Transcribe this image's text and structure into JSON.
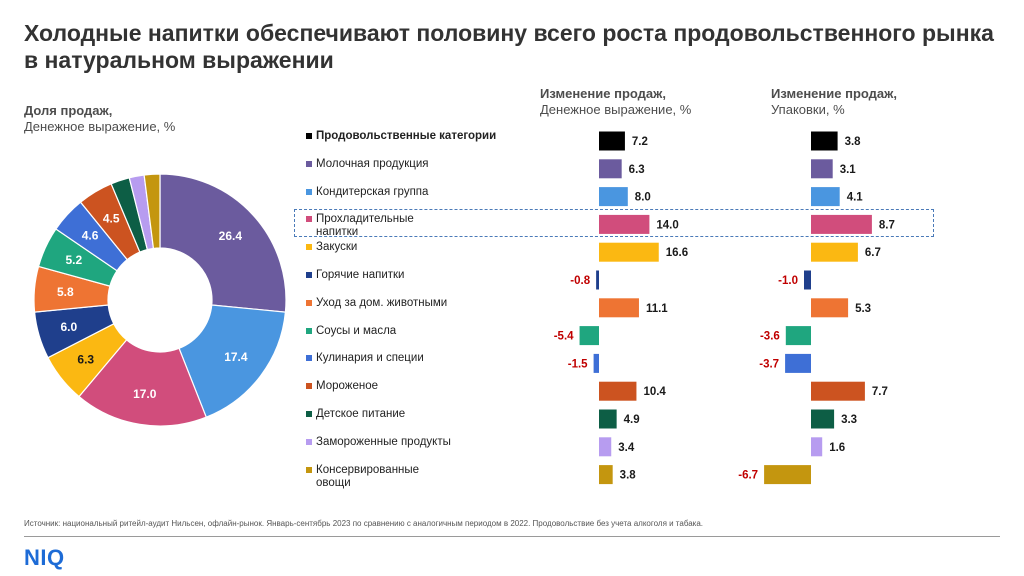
{
  "title": "Холодные напитки обеспечивают половину всего роста продовольственного рынка в натуральном выражении",
  "pie_heading": {
    "line1": "Доля продаж,",
    "line2": "Денежное выражение, %"
  },
  "mid_heading": {
    "line1": "Изменение продаж,",
    "line2": "Денежное выражение, %"
  },
  "right_heading": {
    "line1": "Изменение продаж,",
    "line2": "Упаковки, %"
  },
  "colors": {
    "negative_label": "#c00000",
    "positive_label": "#1a1a1a",
    "highlight_border": "#4a7ab8",
    "logo": "#1d6bd6"
  },
  "chart_data": [
    {
      "type": "pie",
      "variant": "donut",
      "title": "Доля продаж, Денежное выражение, %",
      "categories": [
        "Молочная продукция",
        "Кондитерская группа",
        "Прохладительные напитки",
        "Закуски",
        "Горячие напитки",
        "Уход за дом. животными",
        "Соусы и масла",
        "Кулинария и специи",
        "Мороженое",
        "Детское питание",
        "Замороженные продукты",
        "Консервированные овощи"
      ],
      "values": [
        26.4,
        17.4,
        17.0,
        6.3,
        6.0,
        5.8,
        5.2,
        4.6,
        4.5,
        2.4,
        1.9,
        2.0
      ],
      "labels": [
        "26.4",
        "17.4",
        "17.0",
        "6.3",
        "6.0",
        "5.8",
        "5.2",
        "4.6",
        "4.5",
        "",
        "",
        ""
      ],
      "colors": [
        "#6b5b9e",
        "#4a96e0",
        "#d14d7c",
        "#fbb812",
        "#1f3f8c",
        "#ee7433",
        "#1fa67f",
        "#3e6fd6",
        "#cc5320",
        "#0d5e45",
        "#b79cf0",
        "#c4960f"
      ]
    },
    {
      "type": "bar",
      "orientation": "horizontal",
      "title": "Изменение продаж, Денежное выражение, %",
      "categories": [
        "Продовольственные категории",
        "Молочная продукция",
        "Кондитерская группа",
        "Прохладительные напитки",
        "Закуски",
        "Горячие напитки",
        "Уход за дом. животными",
        "Соусы и масла",
        "Кулинария и специи",
        "Мороженое",
        "Детское питание",
        "Замороженные продукты",
        "Консервированные овощи"
      ],
      "values": [
        7.2,
        6.3,
        8.0,
        14.0,
        16.6,
        -0.8,
        11.1,
        -5.4,
        -1.5,
        10.4,
        4.9,
        3.4,
        3.8
      ],
      "labels": [
        "7.2",
        "6.3",
        "8.0",
        "14.0",
        "16.6",
        "-0.8",
        "11.1",
        "-5.4",
        "-1.5",
        "10.4",
        "4.9",
        "3.4",
        "3.8"
      ]
    },
    {
      "type": "bar",
      "orientation": "horizontal",
      "title": "Изменение продаж, Упаковки, %",
      "categories": [
        "Продовольственные категории",
        "Молочная продукция",
        "Кондитерская группа",
        "Прохладительные напитки",
        "Закуски",
        "Горячие напитки",
        "Уход за дом. животными",
        "Соусы и масла",
        "Кулинария и специи",
        "Мороженое",
        "Детское питание",
        "Замороженные продукты",
        "Консервированные овощи"
      ],
      "values": [
        3.8,
        3.1,
        4.1,
        8.7,
        6.7,
        -1.0,
        5.3,
        -3.6,
        -3.7,
        7.7,
        3.3,
        1.6,
        -6.7
      ],
      "labels": [
        "3.8",
        "3.1",
        "4.1",
        "8.7",
        "6.7",
        "-1.0",
        "5.3",
        "-3.6",
        "-3.7",
        "7.7",
        "3.3",
        "1.6",
        "-6.7"
      ]
    }
  ],
  "legend": [
    {
      "line1": "Продовольственные категории",
      "line2": "",
      "color": "#000000",
      "bold": true
    },
    {
      "line1": "Молочная продукция",
      "line2": "",
      "color": "#6b5b9e"
    },
    {
      "line1": "Кондитерская группа",
      "line2": "",
      "color": "#4a96e0"
    },
    {
      "line1": "Прохладительные",
      "line2": "напитки",
      "color": "#d14d7c"
    },
    {
      "line1": "Закуски",
      "line2": "",
      "color": "#fbb812"
    },
    {
      "line1": "Горячие напитки",
      "line2": "",
      "color": "#1f3f8c"
    },
    {
      "line1": "Уход за дом. животными",
      "line2": "",
      "color": "#ee7433"
    },
    {
      "line1": "Соусы и масла",
      "line2": "",
      "color": "#1fa67f"
    },
    {
      "line1": "Кулинария и специи",
      "line2": "",
      "color": "#3e6fd6"
    },
    {
      "line1": "Мороженое",
      "line2": "",
      "color": "#cc5320"
    },
    {
      "line1": "Детское питание",
      "line2": "",
      "color": "#0d5e45"
    },
    {
      "line1": "Замороженные продукты",
      "line2": "",
      "color": "#b79cf0"
    },
    {
      "line1": "Консервированные",
      "line2": "овощи",
      "color": "#c4960f"
    }
  ],
  "source": "Источник: национальный ритейл-аудит Нильсен, офлайн-рынок. Январь-сентябрь 2023 по сравнению с аналогичным периодом в 2022. Продовольствие без учета алкоголя и табака.",
  "logo": "NIQ"
}
